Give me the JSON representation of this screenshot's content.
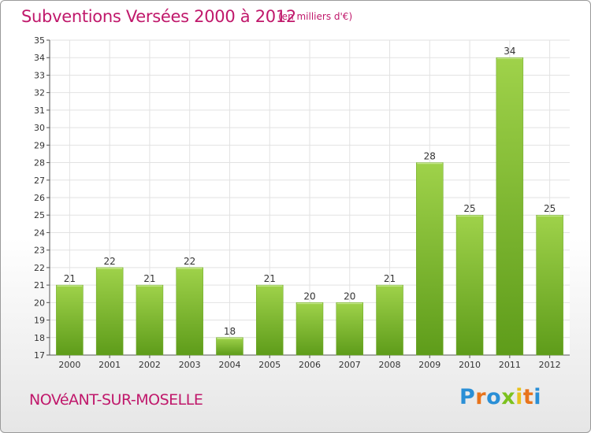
{
  "chart_data": {
    "type": "bar",
    "title": "Subventions Versées 2000 à 2012",
    "subtitle": "(en milliers d'€)",
    "categories": [
      "2000",
      "2001",
      "2002",
      "2003",
      "2004",
      "2005",
      "2006",
      "2007",
      "2008",
      "2009",
      "2010",
      "2011",
      "2012"
    ],
    "values": [
      21,
      22,
      21,
      22,
      18,
      21,
      20,
      20,
      21,
      28,
      25,
      34,
      25
    ],
    "ylim": [
      17,
      35
    ],
    "yticks": [
      17,
      18,
      19,
      20,
      21,
      22,
      23,
      24,
      25,
      26,
      27,
      28,
      29,
      30,
      31,
      32,
      33,
      34,
      35
    ],
    "grid": true,
    "bar_color": "#7dbb2c"
  },
  "footer": {
    "commune": "NOVéANT-SUR-MOSELLE",
    "logo_letters": [
      "P",
      "r",
      "o",
      "x",
      "i",
      "t",
      "i"
    ],
    "logo_colors": [
      "#2a8fd6",
      "#e8741c",
      "#2a8fd6",
      "#7cc11e",
      "#e8c21c",
      "#e8741c",
      "#2a8fd6"
    ]
  }
}
